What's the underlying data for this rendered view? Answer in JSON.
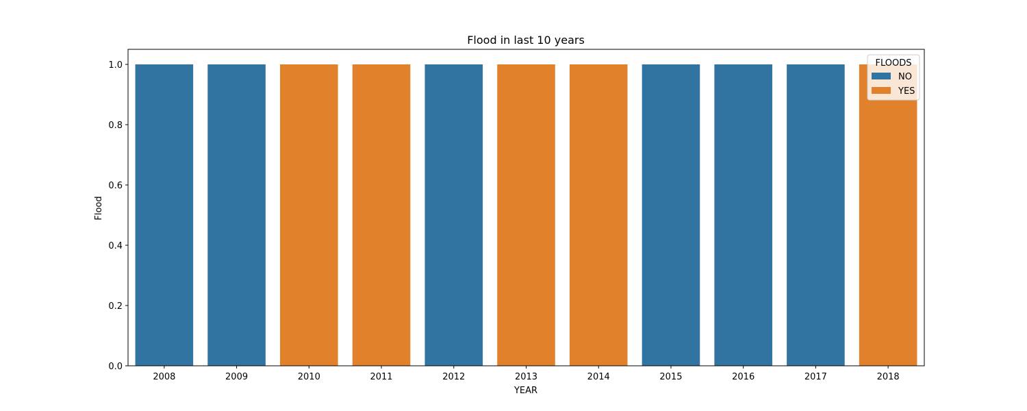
{
  "chart_data": {
    "type": "bar",
    "title": "Flood in last 10 years",
    "xlabel": "YEAR",
    "ylabel": "Flood",
    "categories": [
      "2008",
      "2009",
      "2010",
      "2011",
      "2012",
      "2013",
      "2014",
      "2015",
      "2016",
      "2017",
      "2018"
    ],
    "values": [
      1,
      1,
      1,
      1,
      1,
      1,
      1,
      1,
      1,
      1,
      1
    ],
    "hue": [
      "NO",
      "NO",
      "YES",
      "YES",
      "NO",
      "YES",
      "YES",
      "NO",
      "NO",
      "NO",
      "YES"
    ],
    "ylim": [
      0,
      1.05
    ],
    "yticks": [
      0.0,
      0.2,
      0.4,
      0.6,
      0.8,
      1.0
    ],
    "ytick_labels": [
      "0.0",
      "0.2",
      "0.4",
      "0.6",
      "0.8",
      "1.0"
    ],
    "grid": false,
    "legend": {
      "title": "FLOODS",
      "placement": "top-right",
      "entries": [
        {
          "label": "NO",
          "color": "#3274a1"
        },
        {
          "label": "YES",
          "color": "#e1812c"
        }
      ]
    }
  }
}
